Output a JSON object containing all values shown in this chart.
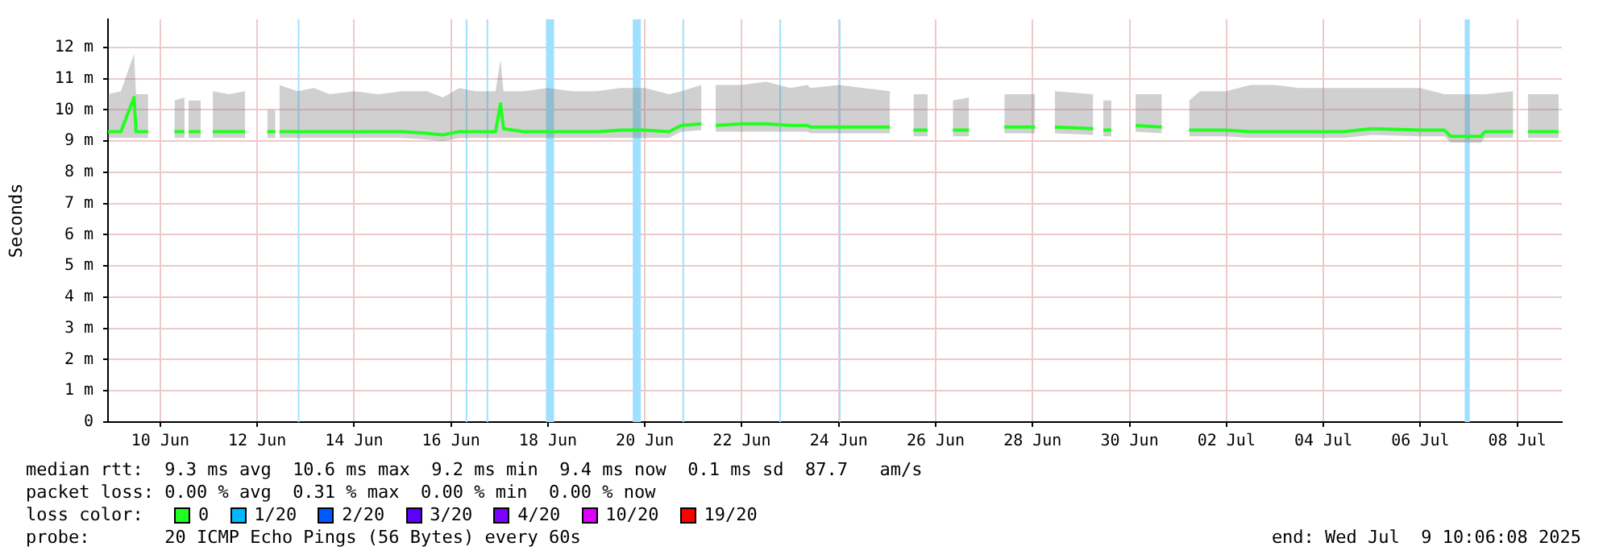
{
  "chart_data": {
    "type": "line",
    "ylabel": "Seconds",
    "x": [
      "2025-06-09T10:06",
      "2025-06-09T16:30",
      "2025-06-09T23:00",
      "2025-06-10T00:00",
      "2025-06-10T06:00",
      "2025-06-10T12:00",
      "2025-06-10T19:00",
      "2025-06-11T00:00",
      "2025-06-11T01:00",
      "2025-06-11T02:00",
      "2025-06-11T08:00",
      "2025-06-11T10:00",
      "2025-06-11T14:00",
      "2025-06-11T22:00",
      "2025-06-12T06:00",
      "2025-06-12T12:00",
      "2025-06-12T17:00",
      "2025-06-12T21:00",
      "2025-06-12T22:00",
      "2025-06-12T23:00",
      "2025-06-13T08:00",
      "2025-06-13T16:00",
      "2025-06-14T00:00",
      "2025-06-14T12:00",
      "2025-06-15T00:00",
      "2025-06-15T12:00",
      "2025-06-16T00:00",
      "2025-06-16T08:00",
      "2025-06-16T16:00",
      "2025-06-17T00:00",
      "2025-06-17T10:00",
      "2025-06-17T12:30",
      "2025-06-17T14:00",
      "2025-06-18T00:00",
      "2025-06-18T12:00",
      "2025-06-19T00:00",
      "2025-06-19T12:00",
      "2025-06-20T00:00",
      "2025-06-20T12:00",
      "2025-06-21T00:00",
      "2025-06-21T06:00",
      "2025-06-21T16:00",
      "2025-06-21T18:30",
      "2025-06-21T23:00",
      "2025-06-22T12:00",
      "2025-06-23T00:00",
      "2025-06-23T12:00",
      "2025-06-23T20:30",
      "2025-06-23T22:00",
      "2025-06-24T12:00",
      "2025-06-25T13:20",
      "2025-06-25T20:00",
      "2025-06-26T01:00",
      "2025-06-26T08:00",
      "2025-06-26T18:00",
      "2025-06-26T20:30",
      "2025-06-27T04:30",
      "2025-06-27T12:00",
      "2025-06-27T22:00",
      "2025-06-28T13:15",
      "2025-06-28T18:00",
      "2025-06-28T23:00",
      "2025-06-29T18:00",
      "2025-06-29T20:30",
      "2025-06-29T23:00",
      "2025-06-30T03:00",
      "2025-06-30T12:00",
      "2025-06-30T15:00",
      "2025-07-01T04:00",
      "2025-07-01T10:00",
      "2025-07-01T17:30",
      "2025-07-01T23:00",
      "2025-07-02T12:00",
      "2025-07-03T00:00",
      "2025-07-03T12:00",
      "2025-07-04T00:00",
      "2025-07-04T22:00",
      "2025-07-05T12:00",
      "2025-07-06T12:00",
      "2025-07-07T00:00",
      "2025-07-07T03:00",
      "2025-07-07T18:00",
      "2025-07-07T20:00",
      "2025-07-08T10:00",
      "2025-07-08T14:00",
      "2025-07-08T17:20",
      "2025-07-09T08:30"
    ],
    "series": [
      {
        "name": null,
        "color": "#20ff20",
        "values": [
          9.3,
          9.3,
          10.4,
          9.3,
          9.3,
          null,
          9.3,
          9.3,
          null,
          9.3,
          9.3,
          null,
          9.3,
          9.3,
          9.3,
          null,
          9.3,
          9.3,
          null,
          9.3,
          9.3,
          9.3,
          9.3,
          9.3,
          9.3,
          9.3,
          9.25,
          9.2,
          9.3,
          9.3,
          9.3,
          10.2,
          9.4,
          9.3,
          9.3,
          9.3,
          9.3,
          9.35,
          9.35,
          9.3,
          9.5,
          9.55,
          null,
          9.5,
          9.55,
          9.55,
          9.5,
          9.5,
          9.45,
          9.45,
          9.45,
          null,
          9.35,
          9.35,
          null,
          9.35,
          9.35,
          null,
          9.45,
          9.45,
          null,
          9.45,
          9.4,
          null,
          9.35,
          9.35,
          null,
          9.5,
          9.45,
          null,
          9.35,
          9.35,
          9.35,
          9.3,
          9.3,
          9.3,
          9.3,
          9.4,
          9.35,
          9.35,
          9.15,
          9.15,
          9.3,
          9.3,
          null,
          9.3,
          9.3
        ],
        "lower": [
          9.1,
          9.1,
          9.1,
          9.1,
          9.1,
          null,
          9.1,
          9.1,
          null,
          9.1,
          9.1,
          null,
          9.1,
          9.1,
          9.1,
          null,
          9.1,
          9.1,
          null,
          9.1,
          9.1,
          9.1,
          9.1,
          9.1,
          9.1,
          9.1,
          9.05,
          9.0,
          9.1,
          9.1,
          9.1,
          9.1,
          9.1,
          9.1,
          9.1,
          9.1,
          9.1,
          9.1,
          9.1,
          9.1,
          9.3,
          9.35,
          null,
          9.3,
          9.3,
          9.3,
          9.3,
          9.3,
          9.25,
          9.25,
          9.25,
          null,
          9.15,
          9.15,
          null,
          9.15,
          9.15,
          null,
          9.25,
          9.25,
          null,
          9.25,
          9.2,
          null,
          9.15,
          9.15,
          null,
          9.3,
          9.25,
          null,
          9.15,
          9.15,
          9.15,
          9.1,
          9.1,
          9.1,
          9.1,
          9.2,
          9.15,
          9.15,
          8.95,
          8.95,
          9.1,
          9.1,
          null,
          9.1,
          9.1
        ],
        "upper": [
          10.5,
          10.6,
          11.8,
          10.5,
          10.5,
          null,
          10.3,
          10.4,
          null,
          10.3,
          10.3,
          null,
          10.6,
          10.5,
          10.6,
          null,
          10.0,
          10.0,
          null,
          10.8,
          10.6,
          10.7,
          10.5,
          10.6,
          10.5,
          10.6,
          10.6,
          10.4,
          10.7,
          10.6,
          10.6,
          11.6,
          10.6,
          10.6,
          10.7,
          10.6,
          10.6,
          10.7,
          10.7,
          10.5,
          10.6,
          10.8,
          null,
          10.8,
          10.8,
          10.9,
          10.7,
          10.8,
          10.7,
          10.8,
          10.6,
          null,
          10.5,
          10.5,
          null,
          10.3,
          10.4,
          null,
          10.5,
          10.5,
          null,
          10.6,
          10.5,
          null,
          10.3,
          10.3,
          null,
          10.5,
          10.5,
          null,
          10.3,
          10.6,
          10.6,
          10.8,
          10.8,
          10.7,
          10.7,
          10.7,
          10.7,
          10.5,
          10.5,
          10.5,
          10.5,
          10.6,
          null,
          10.5,
          10.5
        ]
      }
    ],
    "xlim": [
      "2025-06-09T10:06",
      "2025-07-09T10:06"
    ],
    "xticks": [
      {
        "value": "2025-06-10T12:00",
        "label": "10 Jun"
      },
      {
        "value": "2025-06-12T12:00",
        "label": "12 Jun"
      },
      {
        "value": "2025-06-14T12:00",
        "label": "14 Jun"
      },
      {
        "value": "2025-06-16T12:00",
        "label": "16 Jun"
      },
      {
        "value": "2025-06-18T12:00",
        "label": "18 Jun"
      },
      {
        "value": "2025-06-20T12:00",
        "label": "20 Jun"
      },
      {
        "value": "2025-06-22T12:00",
        "label": "22 Jun"
      },
      {
        "value": "2025-06-24T12:00",
        "label": "24 Jun"
      },
      {
        "value": "2025-06-26T12:00",
        "label": "26 Jun"
      },
      {
        "value": "2025-06-28T12:00",
        "label": "28 Jun"
      },
      {
        "value": "2025-06-30T12:00",
        "label": "30 Jun"
      },
      {
        "value": "2025-07-02T12:00",
        "label": "02 Jul"
      },
      {
        "value": "2025-07-04T12:00",
        "label": "04 Jul"
      },
      {
        "value": "2025-07-06T12:00",
        "label": "06 Jul"
      },
      {
        "value": "2025-07-08T12:00",
        "label": "08 Jul"
      }
    ],
    "ylim": [
      0,
      12.9
    ],
    "yticks": [
      0,
      {
        "value": 1,
        "label": "1 m"
      },
      {
        "value": 2,
        "label": "2 m"
      },
      {
        "value": 3,
        "label": "3 m"
      },
      {
        "value": 4,
        "label": "4 m"
      },
      {
        "value": 5,
        "label": "5 m"
      },
      {
        "value": 6,
        "label": "6 m"
      },
      {
        "value": 7,
        "label": "7 m"
      },
      {
        "value": 8,
        "label": "8 m"
      },
      {
        "value": 9,
        "label": "9 m"
      },
      {
        "value": 10,
        "label": "10 m"
      },
      {
        "value": 11,
        "label": "11 m"
      },
      {
        "value": 12,
        "label": "12 m"
      }
    ],
    "grid": true,
    "legend": false,
    "marker": "none",
    "line_style": "solid",
    "ref_lines": [
      {
        "axis": "x",
        "value": "2025-06-13T08:30",
        "color": "#a0e0ff"
      },
      {
        "axis": "x",
        "value": "2025-06-16T19:40",
        "color": "#a0e0ff"
      },
      {
        "axis": "x",
        "value": "2025-06-17T06:00",
        "color": "#a0e0ff"
      },
      {
        "axis": "x",
        "value": "2025-06-21T07:00",
        "color": "#a0e0ff"
      },
      {
        "axis": "x",
        "value": "2025-06-23T07:00",
        "color": "#a0e0ff"
      },
      {
        "axis": "x",
        "value": "2025-06-24T12:30",
        "color": "#a0e0ff"
      }
    ],
    "bands": [
      {
        "axis": "x",
        "from": "2025-06-18T11:00",
        "to": "2025-06-18T15:00",
        "color": "#a0e0ff"
      },
      {
        "axis": "x",
        "from": "2025-06-20T06:00",
        "to": "2025-06-20T10:00",
        "color": "#a0e0ff"
      },
      {
        "axis": "x",
        "from": "2025-07-07T10:00",
        "to": "2025-07-07T12:30",
        "color": "#a0e0ff"
      }
    ],
    "annotations": [
      "median rtt:  9.3 ms avg  10.6 ms max  9.2 ms min  9.4 ms now  0.1 ms sd  87.7   am/s",
      "packet loss: 0.00 % avg  0.31 % max  0.00 % min  0.00 % now",
      "loss color:",
      "0",
      "1/20",
      "2/20",
      "3/20",
      "4/20",
      "10/20",
      "19/20",
      "probe:       20 ICMP Echo Pings (56 Bytes) every 60s",
      "end: Wed Jul  9 10:06:08 2025"
    ]
  }
}
